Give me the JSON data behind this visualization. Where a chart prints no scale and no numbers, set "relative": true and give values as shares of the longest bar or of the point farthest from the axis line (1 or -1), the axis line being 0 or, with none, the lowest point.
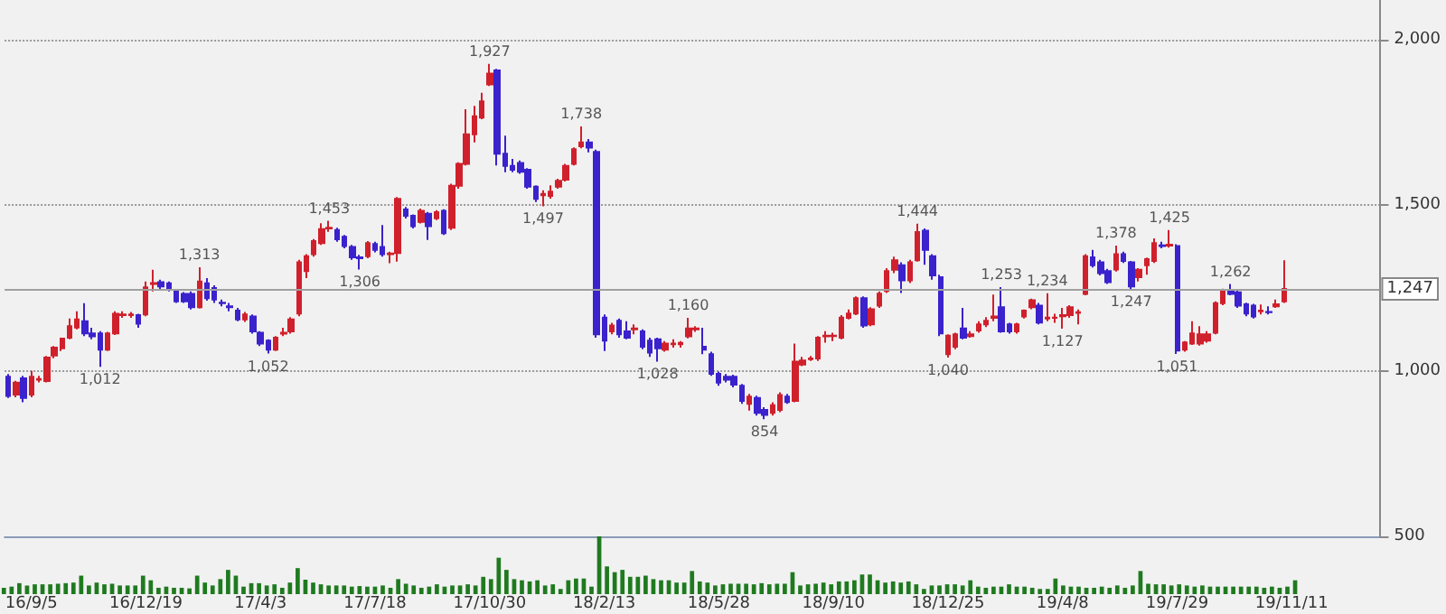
{
  "chart_data": [
    {
      "type": "candlestick",
      "categories": [
        null,
        null,
        null,
        "16/9/5",
        null,
        null,
        null,
        null,
        null,
        null,
        null,
        null,
        null,
        null,
        null,
        null,
        null,
        null,
        "16/12/19",
        null,
        null,
        null,
        null,
        null,
        null,
        null,
        null,
        null,
        null,
        null,
        null,
        null,
        null,
        "17/4/3",
        null,
        null,
        null,
        null,
        null,
        null,
        null,
        null,
        null,
        null,
        null,
        null,
        null,
        null,
        "17/7/18",
        null,
        null,
        null,
        null,
        null,
        null,
        null,
        null,
        null,
        null,
        null,
        null,
        null,
        null,
        "17/10/30",
        null,
        null,
        null,
        null,
        null,
        null,
        null,
        null,
        null,
        null,
        null,
        null,
        null,
        null,
        "18/2/13",
        null,
        null,
        null,
        null,
        null,
        null,
        null,
        null,
        null,
        null,
        null,
        null,
        null,
        null,
        "18/5/28",
        null,
        null,
        null,
        null,
        null,
        null,
        null,
        null,
        null,
        null,
        null,
        null,
        null,
        null,
        "18/9/10",
        null,
        null,
        null,
        null,
        null,
        null,
        null,
        null,
        null,
        null,
        null,
        null,
        null,
        null,
        "18/12/25",
        null,
        null,
        null,
        null,
        null,
        null,
        null,
        null,
        null,
        null,
        null,
        null,
        null,
        null,
        "19/4/8",
        null,
        null,
        null,
        null,
        null,
        null,
        null,
        null,
        null,
        null,
        null,
        null,
        null,
        null,
        "19/7/29",
        null,
        null,
        null,
        null,
        null,
        null,
        null,
        null,
        null,
        null,
        null,
        null,
        null,
        null,
        "19/11/11",
        null,
        null,
        null,
        null,
        null,
        null,
        null,
        null,
        null,
        null,
        null
      ],
      "ohlc": [
        [
          982,
          990,
          918,
          924
        ],
        [
          928,
          970,
          920,
          964
        ],
        [
          977,
          985,
          905,
          918
        ],
        [
          928,
          1000,
          920,
          982
        ],
        [
          973,
          985,
          965,
          975
        ],
        [
          969,
          1045,
          965,
          1040
        ],
        [
          1046,
          1075,
          1038,
          1070
        ],
        [
          1068,
          1100,
          1060,
          1097
        ],
        [
          1100,
          1158,
          1095,
          1135
        ],
        [
          1131,
          1180,
          1125,
          1155
        ],
        [
          1150,
          1204,
          1105,
          1113
        ],
        [
          1113,
          1130,
          1095,
          1104
        ],
        [
          1113,
          1120,
          1012,
          1064
        ],
        [
          1064,
          1118,
          1060,
          1113
        ],
        [
          1113,
          1180,
          1108,
          1172
        ],
        [
          1168,
          1180,
          1160,
          1170
        ],
        [
          1168,
          1178,
          1160,
          1170
        ],
        [
          1168,
          1172,
          1130,
          1142
        ],
        [
          1170,
          1270,
          1165,
          1252
        ],
        [
          1262,
          1305,
          1240,
          1265
        ],
        [
          1268,
          1275,
          1245,
          1255
        ],
        [
          1264,
          1270,
          1240,
          1246
        ],
        [
          1241,
          1245,
          1205,
          1210
        ],
        [
          1232,
          1238,
          1205,
          1210
        ],
        [
          1232,
          1240,
          1185,
          1192
        ],
        [
          1192,
          1313,
          1188,
          1270
        ],
        [
          1264,
          1280,
          1212,
          1219
        ],
        [
          1250,
          1258,
          1205,
          1215
        ],
        [
          1206,
          1215,
          1195,
          1204
        ],
        [
          1195,
          1205,
          1180,
          1192
        ],
        [
          1182,
          1190,
          1150,
          1155
        ],
        [
          1155,
          1178,
          1148,
          1170
        ],
        [
          1164,
          1170,
          1112,
          1119
        ],
        [
          1115,
          1120,
          1075,
          1082
        ],
        [
          1091,
          1095,
          1052,
          1064
        ],
        [
          1064,
          1105,
          1060,
          1100
        ],
        [
          1112,
          1130,
          1105,
          1115
        ],
        [
          1119,
          1162,
          1112,
          1155
        ],
        [
          1173,
          1335,
          1165,
          1328
        ],
        [
          1301,
          1352,
          1280,
          1346
        ],
        [
          1352,
          1398,
          1345,
          1392
        ],
        [
          1386,
          1446,
          1380,
          1428
        ],
        [
          1430,
          1453,
          1420,
          1432
        ],
        [
          1425,
          1432,
          1390,
          1397
        ],
        [
          1405,
          1410,
          1370,
          1377
        ],
        [
          1374,
          1380,
          1335,
          1343
        ],
        [
          1343,
          1350,
          1306,
          1340
        ],
        [
          1346,
          1392,
          1340,
          1386
        ],
        [
          1383,
          1390,
          1358,
          1365
        ],
        [
          1374,
          1440,
          1345,
          1352
        ],
        [
          1352,
          1360,
          1325,
          1354
        ],
        [
          1356,
          1525,
          1330,
          1519
        ],
        [
          1487,
          1495,
          1460,
          1468
        ],
        [
          1468,
          1472,
          1430,
          1437
        ],
        [
          1450,
          1490,
          1445,
          1483
        ],
        [
          1474,
          1480,
          1395,
          1437
        ],
        [
          1461,
          1485,
          1455,
          1479
        ],
        [
          1483,
          1488,
          1410,
          1416
        ],
        [
          1432,
          1565,
          1425,
          1559
        ],
        [
          1559,
          1630,
          1550,
          1625
        ],
        [
          1625,
          1790,
          1620,
          1714
        ],
        [
          1714,
          1800,
          1690,
          1769
        ],
        [
          1765,
          1840,
          1760,
          1814
        ],
        [
          1865,
          1927,
          1860,
          1898
        ],
        [
          1907,
          1912,
          1620,
          1656
        ],
        [
          1656,
          1710,
          1600,
          1619
        ],
        [
          1619,
          1640,
          1600,
          1607
        ],
        [
          1628,
          1635,
          1595,
          1601
        ],
        [
          1607,
          1612,
          1550,
          1556
        ],
        [
          1556,
          1560,
          1510,
          1519
        ],
        [
          1530,
          1545,
          1497,
          1534
        ],
        [
          1528,
          1560,
          1520,
          1541
        ],
        [
          1556,
          1580,
          1550,
          1574
        ],
        [
          1577,
          1625,
          1572,
          1619
        ],
        [
          1625,
          1675,
          1620,
          1669
        ],
        [
          1678,
          1738,
          1672,
          1690
        ],
        [
          1690,
          1700,
          1660,
          1674
        ],
        [
          1661,
          1668,
          1100,
          1110
        ],
        [
          1161,
          1170,
          1060,
          1091
        ],
        [
          1119,
          1145,
          1110,
          1137
        ],
        [
          1151,
          1158,
          1100,
          1110
        ],
        [
          1119,
          1150,
          1095,
          1100
        ],
        [
          1125,
          1140,
          1110,
          1128
        ],
        [
          1119,
          1125,
          1065,
          1073
        ],
        [
          1091,
          1100,
          1042,
          1055
        ],
        [
          1095,
          1100,
          1028,
          1068
        ],
        [
          1064,
          1090,
          1058,
          1082
        ],
        [
          1080,
          1095,
          1070,
          1082
        ],
        [
          1080,
          1090,
          1070,
          1084
        ],
        [
          1104,
          1160,
          1098,
          1128
        ],
        [
          1125,
          1135,
          1118,
          1128
        ],
        [
          1073,
          1130,
          1050,
          1064
        ],
        [
          1050,
          1058,
          985,
          991
        ],
        [
          991,
          998,
          955,
          964
        ],
        [
          982,
          990,
          965,
          973
        ],
        [
          982,
          988,
          950,
          958
        ],
        [
          955,
          960,
          900,
          909
        ],
        [
          900,
          930,
          880,
          922
        ],
        [
          918,
          925,
          865,
          873
        ],
        [
          882,
          890,
          854,
          867
        ],
        [
          873,
          905,
          865,
          896
        ],
        [
          882,
          935,
          875,
          927
        ],
        [
          922,
          930,
          900,
          906
        ],
        [
          909,
          1082,
          905,
          1028
        ],
        [
          1019,
          1042,
          1014,
          1031
        ],
        [
          1035,
          1045,
          1030,
          1037
        ],
        [
          1037,
          1105,
          1030,
          1100
        ],
        [
          1104,
          1120,
          1085,
          1106
        ],
        [
          1105,
          1115,
          1090,
          1106
        ],
        [
          1100,
          1168,
          1095,
          1161
        ],
        [
          1160,
          1185,
          1155,
          1173
        ],
        [
          1173,
          1225,
          1168,
          1219
        ],
        [
          1219,
          1225,
          1130,
          1137
        ],
        [
          1140,
          1192,
          1135,
          1186
        ],
        [
          1197,
          1240,
          1190,
          1233
        ],
        [
          1241,
          1310,
          1235,
          1301
        ],
        [
          1305,
          1345,
          1295,
          1334
        ],
        [
          1319,
          1328,
          1235,
          1273
        ],
        [
          1273,
          1335,
          1265,
          1328
        ],
        [
          1334,
          1444,
          1330,
          1419
        ],
        [
          1423,
          1430,
          1320,
          1365
        ],
        [
          1346,
          1352,
          1275,
          1288
        ],
        [
          1283,
          1290,
          1105,
          1113
        ],
        [
          1050,
          1110,
          1040,
          1106
        ],
        [
          1073,
          1115,
          1065,
          1110
        ],
        [
          1128,
          1190,
          1095,
          1100
        ],
        [
          1105,
          1120,
          1100,
          1110
        ],
        [
          1122,
          1150,
          1115,
          1140
        ],
        [
          1140,
          1162,
          1132,
          1151
        ],
        [
          1160,
          1230,
          1150,
          1164
        ],
        [
          1192,
          1253,
          1115,
          1119
        ],
        [
          1140,
          1145,
          1112,
          1119
        ],
        [
          1119,
          1145,
          1112,
          1140
        ],
        [
          1164,
          1185,
          1158,
          1182
        ],
        [
          1192,
          1218,
          1186,
          1213
        ],
        [
          1197,
          1205,
          1140,
          1146
        ],
        [
          1158,
          1234,
          1150,
          1161
        ],
        [
          1160,
          1172,
          1145,
          1161
        ],
        [
          1165,
          1190,
          1127,
          1168
        ],
        [
          1168,
          1198,
          1160,
          1192
        ],
        [
          1175,
          1185,
          1140,
          1177
        ],
        [
          1232,
          1352,
          1228,
          1346
        ],
        [
          1343,
          1365,
          1312,
          1319
        ],
        [
          1328,
          1335,
          1288,
          1295
        ],
        [
          1301,
          1308,
          1262,
          1268
        ],
        [
          1306,
          1378,
          1300,
          1352
        ],
        [
          1352,
          1360,
          1326,
          1332
        ],
        [
          1328,
          1332,
          1247,
          1255
        ],
        [
          1283,
          1310,
          1270,
          1305
        ],
        [
          1319,
          1342,
          1290,
          1337
        ],
        [
          1332,
          1400,
          1326,
          1386
        ],
        [
          1379,
          1390,
          1370,
          1377
        ],
        [
          1378,
          1425,
          1372,
          1381
        ],
        [
          1377,
          1382,
          1051,
          1061
        ],
        [
          1064,
          1090,
          1058,
          1086
        ],
        [
          1082,
          1150,
          1078,
          1113
        ],
        [
          1082,
          1135,
          1076,
          1110
        ],
        [
          1091,
          1120,
          1085,
          1110
        ],
        [
          1115,
          1210,
          1110,
          1204
        ],
        [
          1204,
          1248,
          1198,
          1243
        ],
        [
          1241,
          1262,
          1228,
          1232
        ],
        [
          1237,
          1242,
          1190,
          1197
        ],
        [
          1201,
          1206,
          1165,
          1173
        ],
        [
          1197,
          1202,
          1158,
          1164
        ],
        [
          1180,
          1200,
          1170,
          1182
        ],
        [
          1178,
          1195,
          1170,
          1177
        ],
        [
          1195,
          1215,
          1190,
          1201
        ],
        [
          1210,
          1334,
          1205,
          1247
        ],
        null,
        null,
        null,
        null,
        null,
        null,
        null,
        null,
        null,
        null,
        null,
        null
      ],
      "colors": [
        "#3a22cc",
        "#d0202c",
        "#3a22cc",
        "#d0202c",
        "#d0202c",
        "#d0202c",
        "#d0202c",
        "#d0202c",
        "#d0202c",
        "#d0202c",
        "#3a22cc",
        "#3a22cc",
        "#3a22cc",
        "#d0202c",
        "#d0202c",
        "#d0202c",
        "#d0202c",
        "#3a22cc",
        "#d0202c",
        "#d0202c",
        "#3a22cc",
        "#3a22cc",
        "#3a22cc",
        "#3a22cc",
        "#3a22cc",
        "#d0202c",
        "#3a22cc",
        "#3a22cc",
        "#3a22cc",
        "#3a22cc",
        "#3a22cc",
        "#d0202c",
        "#3a22cc",
        "#3a22cc",
        "#3a22cc",
        "#d0202c",
        "#d0202c",
        "#d0202c",
        "#d0202c",
        "#d0202c",
        "#d0202c",
        "#d0202c",
        "#d0202c",
        "#3a22cc",
        "#3a22cc",
        "#3a22cc",
        "#3a22cc",
        "#d0202c",
        "#3a22cc",
        "#3a22cc",
        "#d0202c",
        "#d0202c",
        "#3a22cc",
        "#3a22cc",
        "#d0202c",
        "#3a22cc",
        "#d0202c",
        "#3a22cc",
        "#d0202c",
        "#d0202c",
        "#d0202c",
        "#d0202c",
        "#d0202c",
        "#d0202c",
        "#3a22cc",
        "#3a22cc",
        "#3a22cc",
        "#3a22cc",
        "#3a22cc",
        "#3a22cc",
        "#d0202c",
        "#d0202c",
        "#d0202c",
        "#d0202c",
        "#d0202c",
        "#d0202c",
        "#3a22cc",
        "#3a22cc",
        "#3a22cc",
        "#d0202c",
        "#3a22cc",
        "#3a22cc",
        "#d0202c",
        "#3a22cc",
        "#3a22cc",
        "#3a22cc",
        "#d0202c",
        "#d0202c",
        "#d0202c",
        "#d0202c",
        "#d0202c",
        "#3a22cc",
        "#3a22cc",
        "#3a22cc",
        "#3a22cc",
        "#3a22cc",
        "#3a22cc",
        "#d0202c",
        "#3a22cc",
        "#3a22cc",
        "#d0202c",
        "#d0202c",
        "#3a22cc",
        "#d0202c",
        "#d0202c",
        "#d0202c",
        "#d0202c",
        "#d0202c",
        "#d0202c",
        "#d0202c",
        "#d0202c",
        "#d0202c",
        "#3a22cc",
        "#d0202c",
        "#d0202c",
        "#d0202c",
        "#d0202c",
        "#3a22cc",
        "#d0202c",
        "#d0202c",
        "#3a22cc",
        "#3a22cc",
        "#3a22cc",
        "#d0202c",
        "#d0202c",
        "#3a22cc",
        "#d0202c",
        "#d0202c",
        "#d0202c",
        "#d0202c",
        "#3a22cc",
        "#3a22cc",
        "#d0202c",
        "#d0202c",
        "#d0202c",
        "#3a22cc",
        "#d0202c",
        "#d0202c",
        "#d0202c",
        "#d0202c",
        "#d0202c",
        "#d0202c",
        "#3a22cc",
        "#3a22cc",
        "#3a22cc",
        "#d0202c",
        "#3a22cc",
        "#3a22cc",
        "#d0202c",
        "#d0202c",
        "#d0202c",
        "#3a22cc",
        "#d0202c",
        "#3a22cc",
        "#d0202c",
        "#d0202c",
        "#d0202c",
        "#d0202c",
        "#d0202c",
        "#d0202c",
        "#3a22cc",
        "#3a22cc",
        "#3a22cc",
        "#3a22cc",
        "#d0202c",
        "#3a22cc",
        "#d0202c",
        "#d0202c",
        null,
        null,
        null,
        null,
        null,
        null,
        null,
        null,
        null,
        null,
        null,
        null
      ],
      "ylim": [
        500,
        2120
      ],
      "yticks": [
        {
          "value": 500,
          "label": "500"
        },
        {
          "value": 1000,
          "label": "1,000"
        },
        {
          "value": 1500,
          "label": "1,500"
        },
        {
          "value": 2000,
          "label": "2,000"
        }
      ],
      "grid": "y",
      "ref_lines": [
        {
          "axis": "y",
          "value": 1247,
          "label": "1,247",
          "color": "#a0a0a0"
        }
      ],
      "annotations": [
        {
          "text": "1,012",
          "y": 1012
        },
        {
          "text": "1,313",
          "y": 1313
        },
        {
          "text": "1,052",
          "y": 1052
        },
        {
          "text": "1,453",
          "y": 1453
        },
        {
          "text": "1,306",
          "y": 1306
        },
        {
          "text": "1,927",
          "y": 1927
        },
        {
          "text": "1,497",
          "y": 1497
        },
        {
          "text": "1,738",
          "y": 1738
        },
        {
          "text": "1,028",
          "y": 1028
        },
        {
          "text": "1,160",
          "y": 1160
        },
        {
          "text": "854",
          "y": 854
        },
        {
          "text": "1,444",
          "y": 1444
        },
        {
          "text": "1,040",
          "y": 1040
        },
        {
          "text": "1,253",
          "y": 1253
        },
        {
          "text": "1,234",
          "y": 1234
        },
        {
          "text": "1,127",
          "y": 1127
        },
        {
          "text": "1,378",
          "y": 1378
        },
        {
          "text": "1,247",
          "y": 1247
        },
        {
          "text": "1,425",
          "y": 1425
        },
        {
          "text": "1,051",
          "y": 1051
        },
        {
          "text": "1,262",
          "y": 1262
        }
      ]
    },
    {
      "type": "bar",
      "relative": true,
      "color": "#1f7a1f",
      "tick_labels": false,
      "categories": [
        null,
        null,
        null,
        null,
        null,
        null,
        null,
        null,
        null,
        null,
        null,
        null,
        null,
        null,
        null,
        null,
        null,
        null,
        null,
        null,
        null,
        null,
        null,
        null,
        null,
        null,
        null,
        null,
        null,
        null,
        null,
        null,
        null,
        null,
        null,
        null,
        null,
        null,
        null,
        null,
        null,
        null,
        null,
        null,
        null,
        null,
        null,
        null,
        null,
        null,
        null,
        null,
        null,
        null,
        null,
        null,
        null,
        null,
        null,
        null,
        null,
        null,
        null,
        null,
        null,
        null,
        null,
        null,
        null,
        null,
        null,
        null,
        null,
        null,
        null,
        null,
        null,
        null,
        null,
        null,
        null,
        null,
        null,
        null,
        null,
        null,
        null,
        null,
        null,
        null,
        null,
        null,
        null,
        null,
        null,
        null,
        null,
        null,
        null,
        null,
        null,
        null,
        null,
        null,
        null,
        null,
        null,
        null,
        null,
        null,
        null,
        null,
        null,
        null,
        null,
        null,
        null,
        null,
        null,
        null,
        null,
        null,
        null,
        null,
        null,
        null,
        null,
        null,
        null,
        null,
        null,
        null,
        null,
        null,
        null,
        null,
        null,
        null,
        null,
        null,
        null,
        null,
        null,
        null,
        null,
        null,
        null,
        null,
        null,
        null,
        null,
        null,
        null,
        null,
        null,
        null,
        null,
        null,
        null,
        null,
        null,
        null,
        null,
        null,
        null,
        null,
        null,
        null
      ],
      "values": [
        0.11,
        0.13,
        0.19,
        0.15,
        0.17,
        0.17,
        0.17,
        0.18,
        0.19,
        0.2,
        0.32,
        0.15,
        0.2,
        0.17,
        0.18,
        0.15,
        0.15,
        0.15,
        0.32,
        0.24,
        0.11,
        0.13,
        0.11,
        0.11,
        0.1,
        0.32,
        0.2,
        0.15,
        0.26,
        0.42,
        0.32,
        0.13,
        0.19,
        0.19,
        0.15,
        0.17,
        0.11,
        0.2,
        0.45,
        0.25,
        0.2,
        0.17,
        0.15,
        0.15,
        0.15,
        0.13,
        0.14,
        0.13,
        0.13,
        0.15,
        0.11,
        0.26,
        0.18,
        0.15,
        0.11,
        0.13,
        0.17,
        0.13,
        0.15,
        0.15,
        0.17,
        0.15,
        0.3,
        0.26,
        0.63,
        0.42,
        0.26,
        0.24,
        0.22,
        0.24,
        0.15,
        0.17,
        0.09,
        0.24,
        0.27,
        0.27,
        0.13,
        1,
        0.48,
        0.38,
        0.42,
        0.3,
        0.3,
        0.32,
        0.26,
        0.24,
        0.24,
        0.2,
        0.2,
        0.4,
        0.22,
        0.2,
        0.15,
        0.17,
        0.18,
        0.18,
        0.18,
        0.17,
        0.19,
        0.17,
        0.18,
        0.18,
        0.38,
        0.15,
        0.17,
        0.18,
        0.2,
        0.17,
        0.22,
        0.22,
        0.24,
        0.34,
        0.34,
        0.24,
        0.2,
        0.22,
        0.2,
        0.22,
        0.17,
        0.09,
        0.15,
        0.15,
        0.17,
        0.17,
        0.15,
        0.24,
        0.13,
        0.11,
        0.13,
        0.13,
        0.17,
        0.13,
        0.13,
        0.11,
        0.09,
        0.09,
        0.27,
        0.15,
        0.13,
        0.13,
        0.11,
        0.11,
        0.13,
        0.11,
        0.15,
        0.11,
        0.15,
        0.4,
        0.18,
        0.17,
        0.17,
        0.15,
        0.17,
        0.15,
        0.13,
        0.15,
        0.13,
        0.13,
        0.13,
        0.13,
        0.13,
        0.13,
        0.13,
        0.11,
        0.13,
        0.11,
        0.13,
        0.24
      ]
    }
  ]
}
